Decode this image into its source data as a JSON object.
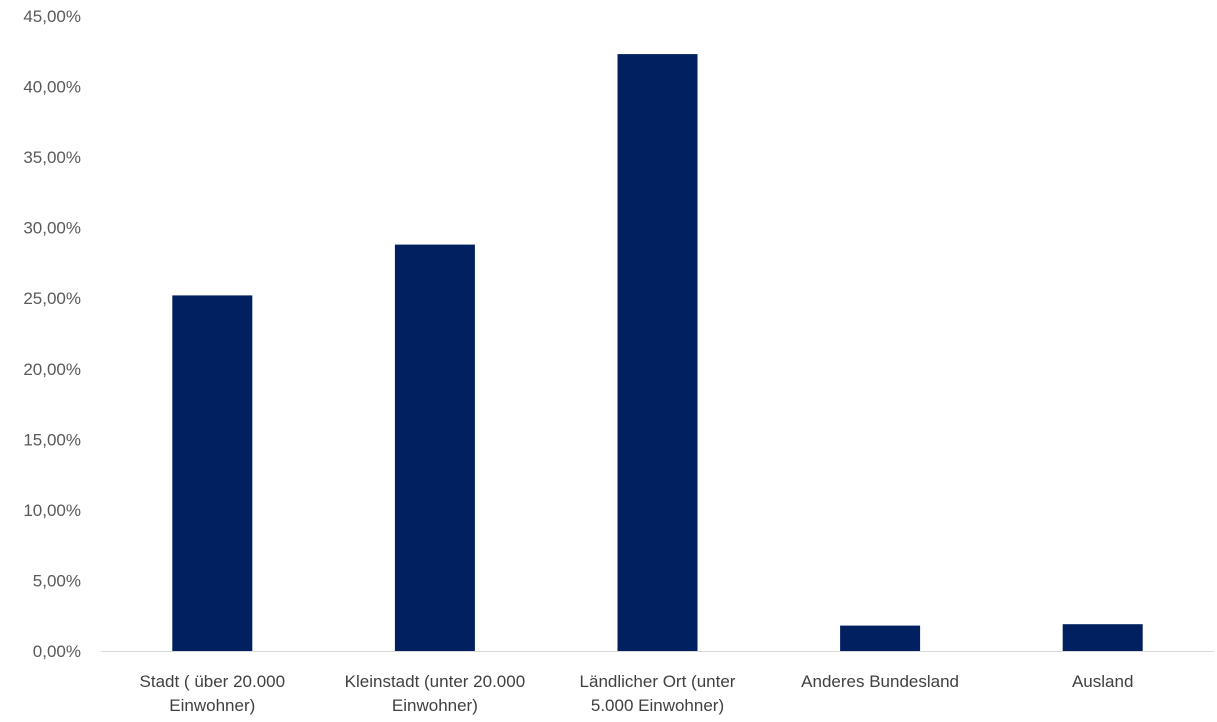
{
  "chart_data": {
    "type": "bar",
    "categories": [
      [
        "Stadt ( über 20.000",
        "Einwohner)"
      ],
      [
        "Kleinstadt (unter 20.000",
        "Einwohner)"
      ],
      [
        "Ländlicher Ort (unter",
        "5.000 Einwohner)"
      ],
      [
        "Anderes Bundesland"
      ],
      [
        "Ausland"
      ]
    ],
    "values": [
      25.2,
      28.8,
      42.3,
      1.8,
      1.9
    ],
    "value_unit": "%",
    "ylim": [
      0,
      45
    ],
    "yticks": [
      "0,00%",
      "5,00%",
      "10,00%",
      "15,00%",
      "20,00%",
      "25,00%",
      "30,00%",
      "35,00%",
      "40,00%",
      "45,00%"
    ],
    "title": "",
    "xlabel": "",
    "ylabel": "",
    "grid": false,
    "legend": "none",
    "colors": {
      "bar": "#002060",
      "axis": "#d9d9d9"
    }
  }
}
